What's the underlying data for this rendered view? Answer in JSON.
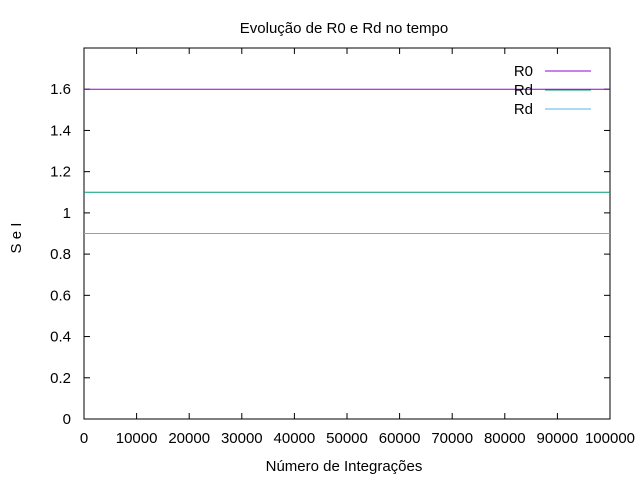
{
  "chart_data": {
    "type": "line",
    "title": "Evolução de R0 e Rd no tempo",
    "xlabel": "Número de Integrações",
    "ylabel": "S e I",
    "xlim": [
      0,
      100000
    ],
    "ylim": [
      0,
      1.8
    ],
    "x_ticks": [
      0,
      10000,
      20000,
      30000,
      40000,
      50000,
      60000,
      70000,
      80000,
      90000,
      100000
    ],
    "x_tick_labels": [
      "0",
      "10000",
      "20000",
      "30000",
      "40000",
      "50000",
      "60000",
      "70000",
      "80000",
      "90000",
      "100000"
    ],
    "y_ticks": [
      0,
      0.2,
      0.4,
      0.6,
      0.8,
      1,
      1.2,
      1.4,
      1.6
    ],
    "y_tick_labels": [
      "0",
      "0.2",
      "0.4",
      "0.6",
      "0.8",
      "1",
      "1.2",
      "1.4",
      "1.6"
    ],
    "grid": false,
    "legend_position": "top-right",
    "series": [
      {
        "name": "R0",
        "color": "#9400d3",
        "x": [
          0,
          100000
        ],
        "y": [
          1.6,
          1.6
        ]
      },
      {
        "name": "Rd",
        "color": "#009e73",
        "x": [
          0,
          100000
        ],
        "y": [
          1.1,
          1.1
        ]
      },
      {
        "name": "Rd",
        "color": "#56b4e9",
        "x": [
          0,
          100000
        ],
        "y": [
          0.9,
          0.9
        ]
      }
    ]
  }
}
